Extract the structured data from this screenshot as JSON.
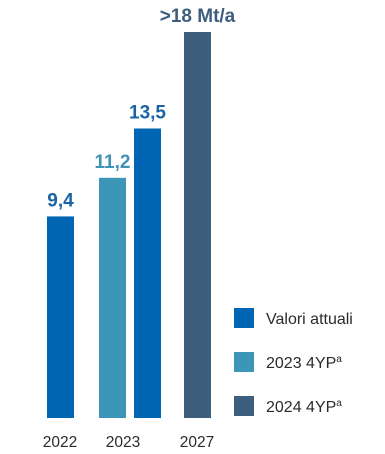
{
  "chart_data": {
    "type": "bar",
    "title": "",
    "xlabel": "",
    "ylabel": "",
    "ylim": [
      0,
      18
    ],
    "grid": false,
    "legend_position": "right",
    "categories": [
      "2022",
      "2023",
      "2027"
    ],
    "bars": [
      {
        "category": "2022",
        "series": "Valori attuali",
        "value": 9.4,
        "label": "9,4"
      },
      {
        "category": "2023",
        "series": "2023 4YPa",
        "value": 11.2,
        "label": "11,2"
      },
      {
        "category": "2023",
        "series": "Valori attuali",
        "value": 13.5,
        "label": "13,5"
      },
      {
        "category": "2027",
        "series": "2024 4YPa",
        "value": 18,
        "label": ">18 Mt/a"
      }
    ],
    "series": [
      {
        "name": "Valori attuali",
        "base": "Valori attuali",
        "sup": "",
        "color": "#0066b3"
      },
      {
        "name": "2023 4YPa",
        "base": "2023 4YP",
        "sup": "a",
        "color": "#3d95b8"
      },
      {
        "name": "2024 4YPa",
        "base": "2024 4YP",
        "sup": "a",
        "color": "#3e5e7e"
      }
    ],
    "label_colors": {
      "Valori attuali": "#1a64a6",
      "2023 4YPa": "#3f93b5",
      "2024 4YPa": "#3e5e7e"
    }
  }
}
